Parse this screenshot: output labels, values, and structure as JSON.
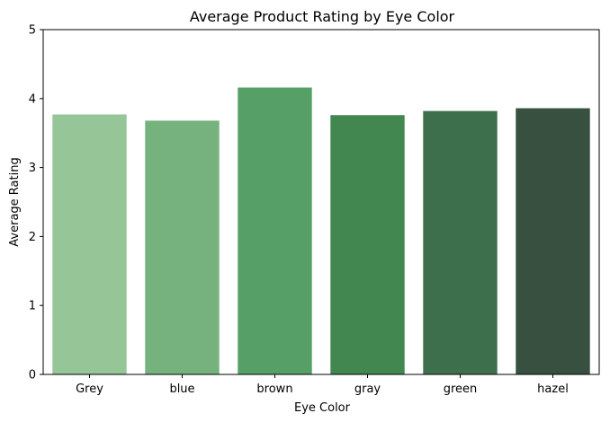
{
  "chart_data": {
    "type": "bar",
    "title": "Average Product Rating by Eye Color",
    "xlabel": "Eye Color",
    "ylabel": "Average Rating",
    "categories": [
      "Grey",
      "blue",
      "brown",
      "gray",
      "green",
      "hazel"
    ],
    "values": [
      3.77,
      3.68,
      4.16,
      3.76,
      3.82,
      3.86
    ],
    "colors": [
      "#96c597",
      "#76b27e",
      "#569f67",
      "#41874f",
      "#3e6f4c",
      "#37503f"
    ],
    "ylim": [
      0,
      5
    ],
    "yticks": [
      "0",
      "1",
      "2",
      "3",
      "4",
      "5"
    ],
    "grid": false,
    "legend": "none"
  }
}
